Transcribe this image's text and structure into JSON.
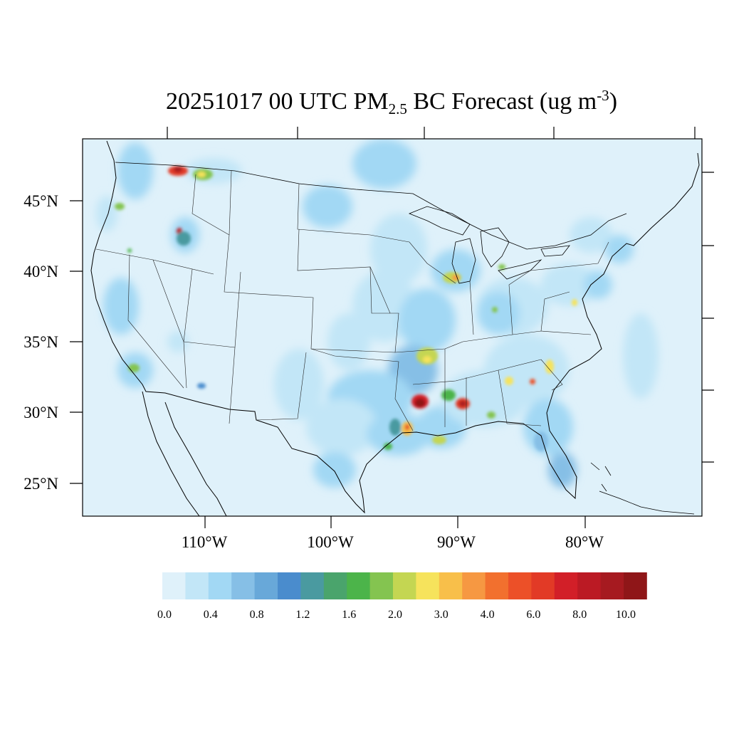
{
  "title": {
    "prefix": "20251017 00 UTC PM",
    "subscript": "2.5",
    "middle": " BC Forecast (ug m",
    "superscript": "-3",
    "suffix": ")"
  },
  "axes": {
    "lat_labels": [
      "45°N",
      "40°N",
      "35°N",
      "30°N",
      "25°N"
    ],
    "lon_labels": [
      "110°W",
      "100°W",
      "90°W",
      "80°W"
    ]
  },
  "colorbar": {
    "colors": [
      "#dff1fa",
      "#c2e6f7",
      "#a2d8f4",
      "#86bfe6",
      "#68a8d9",
      "#4a8ccd",
      "#4a9aa0",
      "#4aa46c",
      "#4cb44a",
      "#84c450",
      "#c4d652",
      "#f6e35c",
      "#f8bf4a",
      "#f69842",
      "#f2702e",
      "#ec5028",
      "#e23a26",
      "#d21f28",
      "#bb1a24",
      "#a61a20",
      "#8f1618"
    ],
    "labels": [
      "0.0",
      "0.4",
      "0.8",
      "1.2",
      "1.6",
      "2.0",
      "3.0",
      "4.0",
      "6.0",
      "8.0",
      "10.0"
    ]
  },
  "map_colors": {
    "background": "#dff1fa",
    "outline": "#000000"
  }
}
